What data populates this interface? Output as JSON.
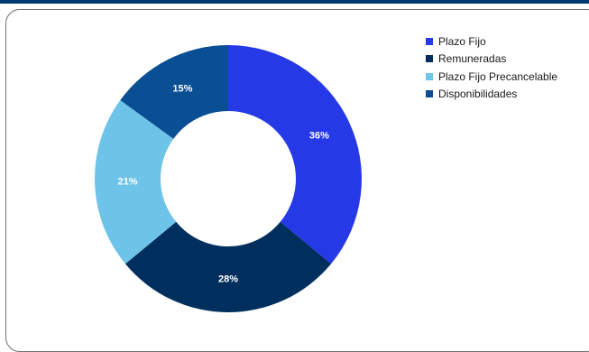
{
  "chart_data": {
    "type": "pie",
    "style": "donut",
    "labels": [
      "Plazo Fijo",
      "Remuneradas",
      "Plazo Fijo Precancelable",
      "Disponibilidades"
    ],
    "values": [
      36,
      28,
      21,
      15
    ],
    "value_labels": [
      "36%",
      "28%",
      "21%",
      "15%"
    ],
    "colors": [
      "#2639e6",
      "#002f5e",
      "#6ec3e8",
      "#0a4f94"
    ],
    "label_color": "#ffffff",
    "start_angle": "top, clockwise",
    "title": "",
    "legend_position": "right"
  }
}
